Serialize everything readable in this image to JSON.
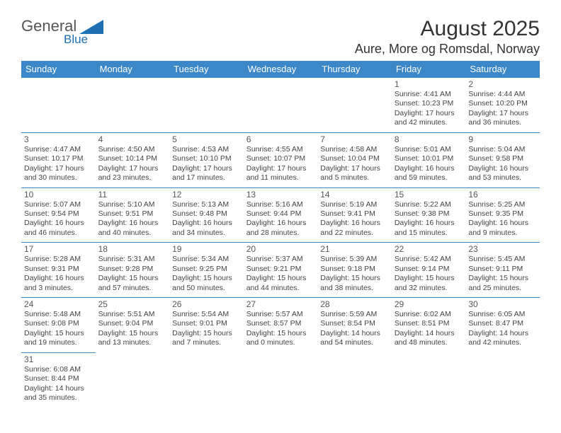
{
  "logo": {
    "text_general": "General",
    "text_blue": "Blue",
    "color_general": "#555555",
    "color_blue": "#1e6fb3",
    "triangle_color": "#1e6fb3"
  },
  "header": {
    "title": "August 2025",
    "location": "Aure, More og Romsdal, Norway"
  },
  "colors": {
    "header_bg": "#3b87c8",
    "header_text": "#ffffff",
    "cell_border": "#3b87c8",
    "body_text": "#444444",
    "daynum": "#555555",
    "background": "#ffffff"
  },
  "typography": {
    "title_fontsize": 30,
    "location_fontsize": 18,
    "weekday_fontsize": 13,
    "daynum_fontsize": 12,
    "body_fontsize": 10.5
  },
  "weekdays": [
    "Sunday",
    "Monday",
    "Tuesday",
    "Wednesday",
    "Thursday",
    "Friday",
    "Saturday"
  ],
  "grid": {
    "rows": 6,
    "cols": 7
  },
  "days": [
    {
      "num": "1",
      "sunrise": "4:41 AM",
      "sunset": "10:23 PM",
      "daylight": "17 hours and 42 minutes."
    },
    {
      "num": "2",
      "sunrise": "4:44 AM",
      "sunset": "10:20 PM",
      "daylight": "17 hours and 36 minutes."
    },
    {
      "num": "3",
      "sunrise": "4:47 AM",
      "sunset": "10:17 PM",
      "daylight": "17 hours and 30 minutes."
    },
    {
      "num": "4",
      "sunrise": "4:50 AM",
      "sunset": "10:14 PM",
      "daylight": "17 hours and 23 minutes."
    },
    {
      "num": "5",
      "sunrise": "4:53 AM",
      "sunset": "10:10 PM",
      "daylight": "17 hours and 17 minutes."
    },
    {
      "num": "6",
      "sunrise": "4:55 AM",
      "sunset": "10:07 PM",
      "daylight": "17 hours and 11 minutes."
    },
    {
      "num": "7",
      "sunrise": "4:58 AM",
      "sunset": "10:04 PM",
      "daylight": "17 hours and 5 minutes."
    },
    {
      "num": "8",
      "sunrise": "5:01 AM",
      "sunset": "10:01 PM",
      "daylight": "16 hours and 59 minutes."
    },
    {
      "num": "9",
      "sunrise": "5:04 AM",
      "sunset": "9:58 PM",
      "daylight": "16 hours and 53 minutes."
    },
    {
      "num": "10",
      "sunrise": "5:07 AM",
      "sunset": "9:54 PM",
      "daylight": "16 hours and 46 minutes."
    },
    {
      "num": "11",
      "sunrise": "5:10 AM",
      "sunset": "9:51 PM",
      "daylight": "16 hours and 40 minutes."
    },
    {
      "num": "12",
      "sunrise": "5:13 AM",
      "sunset": "9:48 PM",
      "daylight": "16 hours and 34 minutes."
    },
    {
      "num": "13",
      "sunrise": "5:16 AM",
      "sunset": "9:44 PM",
      "daylight": "16 hours and 28 minutes."
    },
    {
      "num": "14",
      "sunrise": "5:19 AM",
      "sunset": "9:41 PM",
      "daylight": "16 hours and 22 minutes."
    },
    {
      "num": "15",
      "sunrise": "5:22 AM",
      "sunset": "9:38 PM",
      "daylight": "16 hours and 15 minutes."
    },
    {
      "num": "16",
      "sunrise": "5:25 AM",
      "sunset": "9:35 PM",
      "daylight": "16 hours and 9 minutes."
    },
    {
      "num": "17",
      "sunrise": "5:28 AM",
      "sunset": "9:31 PM",
      "daylight": "16 hours and 3 minutes."
    },
    {
      "num": "18",
      "sunrise": "5:31 AM",
      "sunset": "9:28 PM",
      "daylight": "15 hours and 57 minutes."
    },
    {
      "num": "19",
      "sunrise": "5:34 AM",
      "sunset": "9:25 PM",
      "daylight": "15 hours and 50 minutes."
    },
    {
      "num": "20",
      "sunrise": "5:37 AM",
      "sunset": "9:21 PM",
      "daylight": "15 hours and 44 minutes."
    },
    {
      "num": "21",
      "sunrise": "5:39 AM",
      "sunset": "9:18 PM",
      "daylight": "15 hours and 38 minutes."
    },
    {
      "num": "22",
      "sunrise": "5:42 AM",
      "sunset": "9:14 PM",
      "daylight": "15 hours and 32 minutes."
    },
    {
      "num": "23",
      "sunrise": "5:45 AM",
      "sunset": "9:11 PM",
      "daylight": "15 hours and 25 minutes."
    },
    {
      "num": "24",
      "sunrise": "5:48 AM",
      "sunset": "9:08 PM",
      "daylight": "15 hours and 19 minutes."
    },
    {
      "num": "25",
      "sunrise": "5:51 AM",
      "sunset": "9:04 PM",
      "daylight": "15 hours and 13 minutes."
    },
    {
      "num": "26",
      "sunrise": "5:54 AM",
      "sunset": "9:01 PM",
      "daylight": "15 hours and 7 minutes."
    },
    {
      "num": "27",
      "sunrise": "5:57 AM",
      "sunset": "8:57 PM",
      "daylight": "15 hours and 0 minutes."
    },
    {
      "num": "28",
      "sunrise": "5:59 AM",
      "sunset": "8:54 PM",
      "daylight": "14 hours and 54 minutes."
    },
    {
      "num": "29",
      "sunrise": "6:02 AM",
      "sunset": "8:51 PM",
      "daylight": "14 hours and 48 minutes."
    },
    {
      "num": "30",
      "sunrise": "6:05 AM",
      "sunset": "8:47 PM",
      "daylight": "14 hours and 42 minutes."
    },
    {
      "num": "31",
      "sunrise": "6:08 AM",
      "sunset": "8:44 PM",
      "daylight": "14 hours and 35 minutes."
    }
  ],
  "first_day_column_index": 5,
  "labels": {
    "sunrise": "Sunrise:",
    "sunset": "Sunset:",
    "daylight": "Daylight:"
  }
}
